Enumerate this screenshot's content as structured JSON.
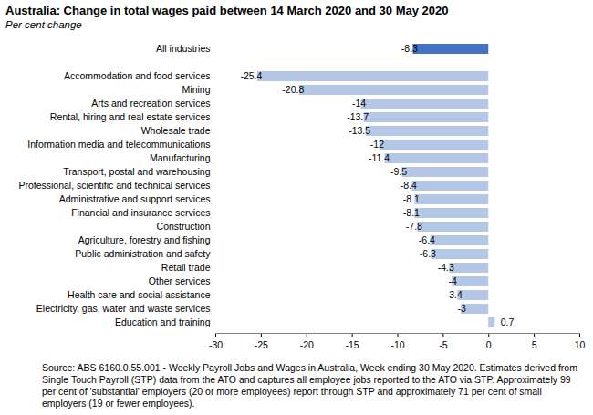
{
  "chart_data": {
    "type": "bar",
    "orientation": "horizontal",
    "title": "Australia: Change in total wages paid between 14 March 2020 and 30 May 2020",
    "subtitle": "Per cent change",
    "source": "Source: ABS 6160.0.55.001 - Weekly Payroll Jobs and Wages in Australia, Week ending 30 May 2020.  Estimates derived from Single Touch Payroll (STP) data from the ATO and captures all employee jobs reported to the ATO via STP.  Approximately 99 per cent of 'substantial' employers (20 or more employees) report through STP and approximately 71 per cent of small employers (19 or fewer employees).",
    "categories": [
      "All industries",
      null,
      "Accommodation and food services",
      "Mining",
      "Arts and recreation services",
      "Rental, hiring and real estate services",
      "Wholesale trade",
      "Information media and telecommunications",
      "Manufacturing",
      "Transport, postal and warehousing",
      "Professional, scientific and technical services",
      "Administrative and support services",
      "Financial and insurance services",
      "Construction",
      "Agriculture, forestry and fishing",
      "Public administration and safety",
      "Retail trade",
      "Other services",
      "Health care and social assistance",
      "Electricity, gas, water and waste services",
      "Education and training"
    ],
    "values": [
      -8.3,
      null,
      -25.4,
      -20.8,
      -14,
      -13.7,
      -13.5,
      -12,
      -11.4,
      -9.5,
      -8.4,
      -8.1,
      -8.1,
      -7.8,
      -6.4,
      -6.3,
      -4.3,
      -4,
      -3.4,
      -3,
      0.7
    ],
    "colors": [
      "#4472c4",
      null,
      "#b4c7e7",
      "#b4c7e7",
      "#b4c7e7",
      "#b4c7e7",
      "#b4c7e7",
      "#b4c7e7",
      "#b4c7e7",
      "#b4c7e7",
      "#b4c7e7",
      "#b4c7e7",
      "#b4c7e7",
      "#b4c7e7",
      "#b4c7e7",
      "#b4c7e7",
      "#b4c7e7",
      "#b4c7e7",
      "#b4c7e7",
      "#b4c7e7",
      "#b4c7e7"
    ],
    "xlim": [
      -30,
      10
    ],
    "xticks": [
      -30,
      -25,
      -20,
      -15,
      -10,
      -5,
      0,
      5,
      10
    ],
    "data_labels": true,
    "grid": false
  }
}
